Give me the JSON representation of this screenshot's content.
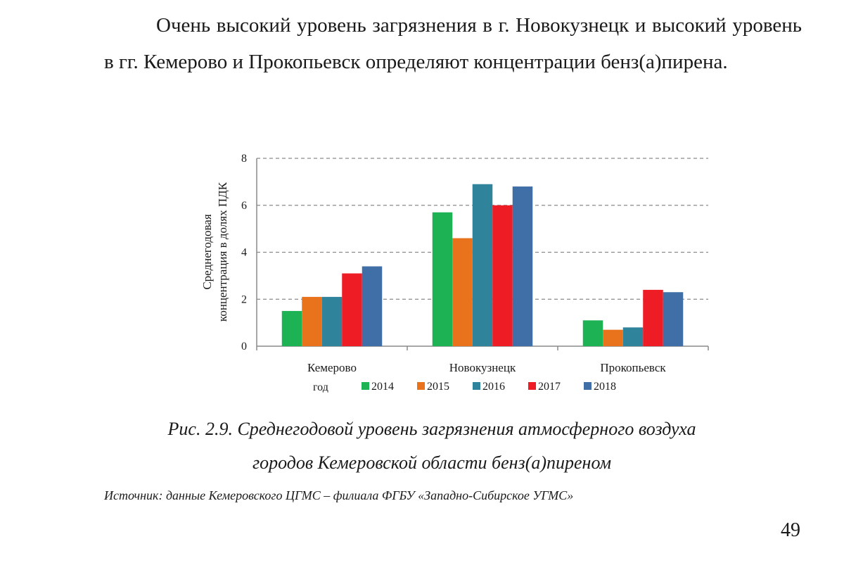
{
  "document": {
    "paragraph": "Очень высокий уровень загрязнения в г. Новокузнецк и высокий уровень в гг. Кемерово и Прокопьевск определяют концентрации бенз(а)пирена.",
    "caption_line1": "Рис. 2.9. Среднегодовой уровень загрязнения атмосферного воздуха",
    "caption_line2": "городов Кемеровской области бенз(а)пиреном",
    "source": "Источник: данные Кемеровского ЦГМС – филиала ФГБУ «Западно-Сибирское УГМС»",
    "page_number": "49"
  },
  "chart_data": {
    "type": "bar",
    "title": "",
    "ylabel_line1": "Среднегодовая",
    "ylabel_line2": "концентрация в долях ПДК",
    "xlabel": "",
    "legend_title": "год",
    "legend_position": "bottom",
    "grid": true,
    "ylim": [
      0,
      8
    ],
    "yticks": [
      0,
      2,
      4,
      6,
      8
    ],
    "categories": [
      "Кемерово",
      "Новокузнецк",
      "Прокопьевск"
    ],
    "series": [
      {
        "name": "2014",
        "color": "#1db254",
        "values": [
          1.5,
          5.7,
          1.1
        ]
      },
      {
        "name": "2015",
        "color": "#e8731c",
        "values": [
          2.1,
          4.6,
          0.7
        ]
      },
      {
        "name": "2016",
        "color": "#2f849c",
        "values": [
          2.1,
          6.9,
          0.8
        ]
      },
      {
        "name": "2017",
        "color": "#ee1c24",
        "values": [
          3.1,
          6.0,
          2.4
        ]
      },
      {
        "name": "2018",
        "color": "#3f6fa6",
        "values": [
          3.4,
          6.8,
          2.3
        ]
      }
    ]
  }
}
